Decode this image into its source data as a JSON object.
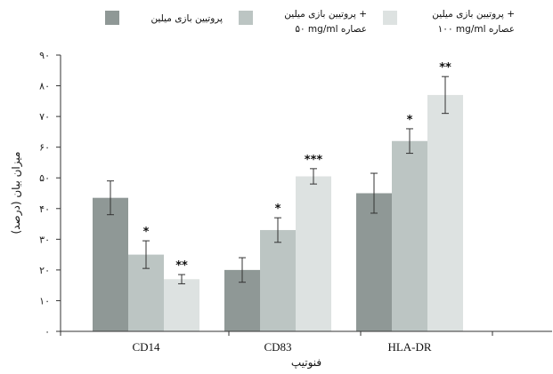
{
  "chart_data": {
    "type": "bar",
    "categories": [
      "CD14",
      "CD83",
      "HLA-DR"
    ],
    "series": [
      {
        "name": "پروتیین بازی میلین",
        "color": "#8f9896",
        "values": [
          43.5,
          20,
          45
        ],
        "errors": [
          5.5,
          4,
          6.5
        ],
        "significance": [
          "",
          "",
          ""
        ]
      },
      {
        "name": "پروتیین بازی میلین + عصاره ۵۰ mg/ml",
        "name_lines": [
          "پروتیین بازی میلین +",
          "۵۰ mg/ml عصاره"
        ],
        "color": "#bcc5c3",
        "values": [
          25,
          33,
          62
        ],
        "errors": [
          4.5,
          4,
          4
        ],
        "significance": [
          "*",
          "*",
          "*"
        ]
      },
      {
        "name": "پروتیین بازی میلین + عصاره ۱۰۰ mg/ml",
        "name_lines": [
          "پروتیین بازی میلین +",
          "۱۰۰ mg/ml عصاره"
        ],
        "color": "#dde2e1",
        "values": [
          17,
          50.5,
          77
        ],
        "errors": [
          1.5,
          2.5,
          6
        ],
        "significance": [
          "**",
          "***",
          "**"
        ]
      }
    ],
    "ylim": [
      0,
      90
    ],
    "yticks": [
      0,
      10,
      20,
      30,
      40,
      50,
      60,
      70,
      80,
      90
    ],
    "ytick_labels": [
      "۰",
      "۱۰",
      "۲۰",
      "۳۰",
      "۴۰",
      "۵۰",
      "۶۰",
      "۷۰",
      "۸۰",
      "۹۰"
    ],
    "xlabel": "فنوتیپ",
    "ylabel": "میزان بیان (درصد)",
    "title": "",
    "legend_position": "top",
    "grid": false
  }
}
